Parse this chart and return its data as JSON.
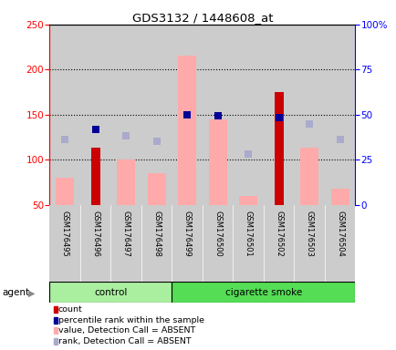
{
  "title": "GDS3132 / 1448608_at",
  "samples": [
    "GSM176495",
    "GSM176496",
    "GSM176497",
    "GSM176498",
    "GSM176499",
    "GSM176500",
    "GSM176501",
    "GSM176502",
    "GSM176503",
    "GSM176504"
  ],
  "count_values": [
    null,
    113,
    null,
    null,
    null,
    null,
    null,
    175,
    null,
    null
  ],
  "percentile_values": [
    null,
    134,
    null,
    null,
    150,
    149,
    null,
    147,
    null,
    null
  ],
  "value_absent": [
    80,
    null,
    100,
    85,
    215,
    145,
    60,
    null,
    113,
    68
  ],
  "rank_absent": [
    122,
    null,
    127,
    120,
    null,
    null,
    106,
    null,
    140,
    122
  ],
  "ylim_left": [
    50,
    250
  ],
  "ylim_right": [
    0,
    100
  ],
  "left_ticks": [
    50,
    100,
    150,
    200,
    250
  ],
  "right_ticks": [
    0,
    25,
    50,
    75,
    100
  ],
  "right_tick_labels": [
    "0",
    "25",
    "50",
    "75",
    "100%"
  ],
  "color_count": "#cc0000",
  "color_percentile": "#000099",
  "color_value_absent": "#ffaaaa",
  "color_rank_absent": "#aaaacc",
  "control_color": "#aaeea0",
  "smoke_color": "#55dd55",
  "bg_color": "#cccccc",
  "legend_items": [
    {
      "label": "count",
      "color": "#cc0000"
    },
    {
      "label": "percentile rank within the sample",
      "color": "#000099"
    },
    {
      "label": "value, Detection Call = ABSENT",
      "color": "#ffaaaa"
    },
    {
      "label": "rank, Detection Call = ABSENT",
      "color": "#aaaacc"
    }
  ]
}
